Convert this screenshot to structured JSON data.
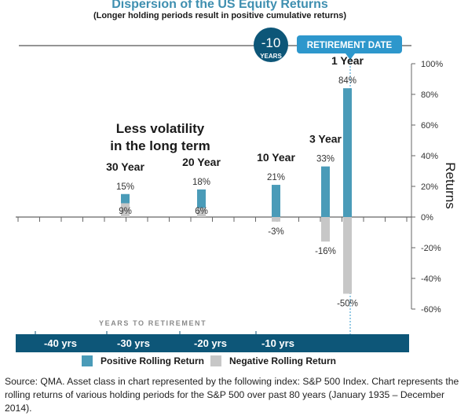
{
  "header": {
    "title": "Dispersion of the US Equity Returns",
    "subtitle": "(Longer holding periods result in positive cumulative returns)"
  },
  "timeline": {
    "badge_number": "-10",
    "badge_label": "YEARS",
    "retirement_label": "RETIREMENT DATE",
    "axis_caption": "YEARS TO RETIREMENT",
    "ticks": [
      "-40 yrs",
      "-30 yrs",
      "-20 yrs",
      "-10 yrs"
    ]
  },
  "annotation": {
    "line1": "Less volatility",
    "line2": "in the long term"
  },
  "legend": {
    "positive": "Positive Rolling Return",
    "negative": "Negative Rolling Return"
  },
  "source": "Source: QMA. Asset class in chart represented by the following index: S&P 500 Index. Chart represents the rolling returns of various holding periods for the S&P 500 over past 80 years (January 1935 – December 2014).",
  "colors": {
    "positive": "#4a9bb8",
    "negative": "#c7c7c7",
    "band": "#0d5678",
    "accent": "#2d97cc",
    "badge": "#0d5678"
  },
  "chart_data": {
    "type": "bar",
    "title": "Dispersion of the US Equity Returns",
    "subtitle": "(Longer holding periods result in positive cumulative returns)",
    "categories": [
      "30 Year",
      "20 Year",
      "10 Year",
      "3 Year",
      "1 Year"
    ],
    "series": [
      {
        "name": "Positive Rolling Return",
        "values": [
          15,
          18,
          21,
          33,
          84
        ],
        "labels": [
          "15%",
          "18%",
          "21%",
          "33%",
          "84%"
        ]
      },
      {
        "name": "Negative Rolling Return",
        "values": [
          9,
          6,
          -3,
          -16,
          -50
        ],
        "labels": [
          "9%",
          "6%",
          "-3%",
          "-16%",
          "-50%"
        ]
      }
    ],
    "ylabel": "Returns",
    "ylim": [
      -60,
      100
    ],
    "yticks": [
      -60,
      -40,
      -20,
      0,
      20,
      40,
      60,
      80,
      100
    ],
    "ytick_labels": [
      "-60%",
      "-40%",
      "-20%",
      "0%",
      "20%",
      "40%",
      "60%",
      "80%",
      "100%"
    ],
    "legend_position": "bottom"
  }
}
